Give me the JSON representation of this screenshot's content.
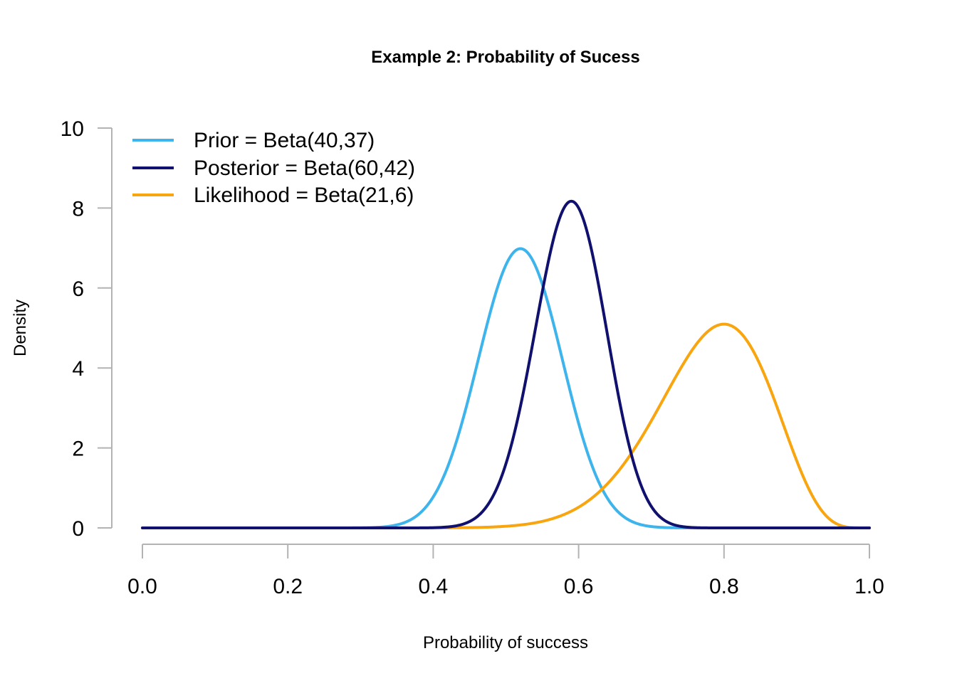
{
  "chart_data": {
    "type": "line",
    "title": "Example 2: Probability of Sucess",
    "xlabel": "Probability of success",
    "ylabel": "Density",
    "xlim": [
      0,
      1
    ],
    "ylim": [
      0,
      10
    ],
    "x_ticks": [
      "0.0",
      "0.2",
      "0.4",
      "0.6",
      "0.8",
      "1.0"
    ],
    "y_ticks": [
      "0",
      "2",
      "4",
      "6",
      "8",
      "10"
    ],
    "grid": false,
    "legend_position": "top-left",
    "series": [
      {
        "name": "Prior = Beta(40,37)",
        "color": "#3EB4EC",
        "distribution": "beta",
        "alpha": 40,
        "beta": 37
      },
      {
        "name": "Posterior = Beta(60,42)",
        "color": "#10106E",
        "distribution": "beta",
        "alpha": 60,
        "beta": 42
      },
      {
        "name": "Likelihood = Beta(21,6)",
        "color": "#F8A50F",
        "distribution": "beta",
        "alpha": 21,
        "beta": 6
      }
    ]
  }
}
